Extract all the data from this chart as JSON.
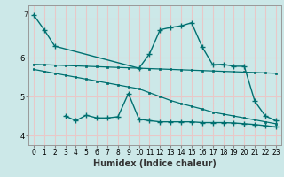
{
  "xlabel": "Humidex (Indice chaleur)",
  "bg_color": "#cce8e8",
  "grid_color": "#e8c8c8",
  "line_color": "#007070",
  "xlim": [
    -0.5,
    23.5
  ],
  "ylim": [
    3.75,
    7.35
  ],
  "yticks": [
    4,
    5,
    6,
    7
  ],
  "xticks": [
    0,
    1,
    2,
    3,
    4,
    5,
    6,
    7,
    8,
    9,
    10,
    11,
    12,
    13,
    14,
    15,
    16,
    17,
    18,
    19,
    20,
    21,
    22,
    23
  ],
  "line1_x": [
    0,
    1,
    2,
    10,
    11,
    12,
    13,
    14,
    15,
    16,
    17,
    18,
    19,
    20,
    21,
    22,
    23
  ],
  "line1_y": [
    7.1,
    6.72,
    6.3,
    5.73,
    6.1,
    6.72,
    6.78,
    6.82,
    6.9,
    6.28,
    5.82,
    5.83,
    5.78,
    5.78,
    4.88,
    4.5,
    4.38
  ],
  "line2_x": [
    0,
    1,
    2,
    3,
    4,
    5,
    6,
    7,
    8,
    9,
    10,
    11,
    12,
    13,
    14,
    15,
    16,
    17,
    18,
    19,
    20,
    21,
    22,
    23
  ],
  "line2_y": [
    5.83,
    5.82,
    5.81,
    5.8,
    5.79,
    5.78,
    5.77,
    5.76,
    5.75,
    5.74,
    5.73,
    5.72,
    5.71,
    5.7,
    5.69,
    5.68,
    5.67,
    5.66,
    5.65,
    5.64,
    5.63,
    5.62,
    5.61,
    5.6
  ],
  "line3_x": [
    0,
    1,
    2,
    3,
    4,
    5,
    6,
    7,
    8,
    9,
    10,
    11,
    12,
    13,
    14,
    15,
    16,
    17,
    18,
    19,
    20,
    21,
    22,
    23
  ],
  "line3_y": [
    5.7,
    5.65,
    5.6,
    5.55,
    5.5,
    5.45,
    5.4,
    5.35,
    5.3,
    5.25,
    5.2,
    5.1,
    5.0,
    4.9,
    4.82,
    4.75,
    4.68,
    4.6,
    4.55,
    4.5,
    4.45,
    4.4,
    4.35,
    4.3
  ],
  "line4_x": [
    3,
    4,
    5,
    6,
    7,
    8,
    9,
    10,
    11,
    12,
    13,
    14,
    15,
    16,
    17,
    18,
    19,
    20,
    21,
    22,
    23
  ],
  "line4_y": [
    4.5,
    4.38,
    4.52,
    4.45,
    4.45,
    4.48,
    5.08,
    4.42,
    4.38,
    4.35,
    4.35,
    4.35,
    4.35,
    4.33,
    4.33,
    4.33,
    4.32,
    4.3,
    4.28,
    4.25,
    4.22
  ]
}
